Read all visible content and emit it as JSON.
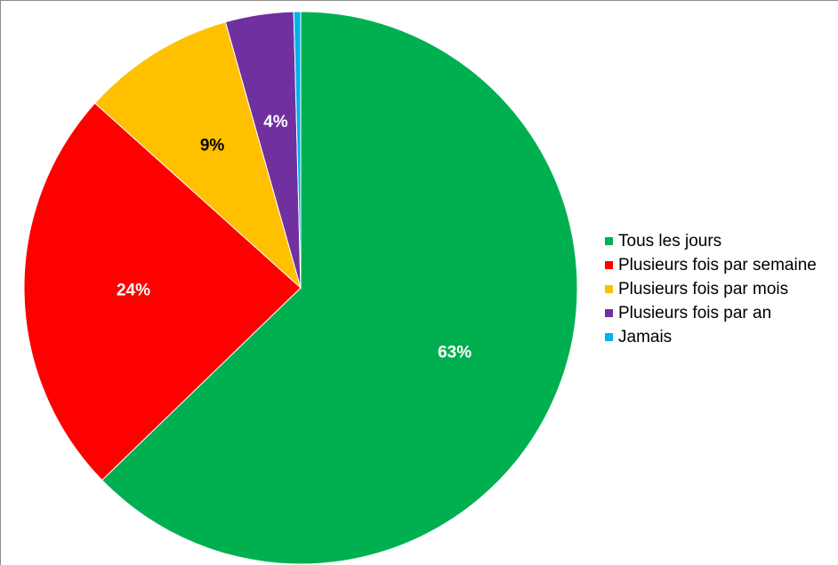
{
  "chart_data": {
    "type": "pie",
    "title": "",
    "slices": [
      {
        "label": "Tous les jours",
        "value": 63,
        "display": "63%",
        "color": "#00B050",
        "label_color": "#ffffff"
      },
      {
        "label": "Plusieurs fois par semaine",
        "value": 24,
        "display": "24%",
        "color": "#FF0000",
        "label_color": "#ffffff"
      },
      {
        "label": "Plusieurs fois par mois",
        "value": 9,
        "display": "9%",
        "color": "#FFC000",
        "label_color": "#000000"
      },
      {
        "label": "Plusieurs fois par an",
        "value": 4,
        "display": "4%",
        "color": "#7030A0",
        "label_color": "#ffffff"
      },
      {
        "label": "Jamais",
        "value": 0.4,
        "display": "",
        "color": "#00B0F0",
        "label_color": "#000000"
      }
    ],
    "legend_position": "right"
  }
}
